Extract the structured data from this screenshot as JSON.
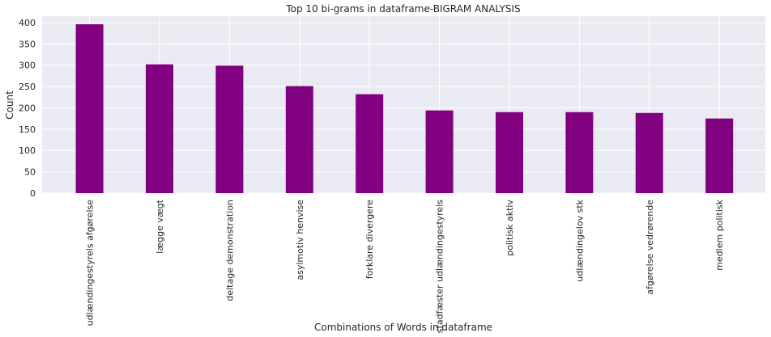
{
  "chart_data": {
    "type": "bar",
    "title": "Top 10 bi-grams in dataframe-BIGRAM ANALYSIS",
    "xlabel": "Combinations of Words in dataframe",
    "ylabel": "Count",
    "ylim": [
      0,
      415
    ],
    "yticks": [
      "0",
      "50",
      "100",
      "150",
      "200",
      "250",
      "300",
      "350",
      "400"
    ],
    "grid": true,
    "bar_color": "#800080",
    "background_color": "#eaeaf2",
    "categories": [
      "udlændingestyrels afgørelse",
      "lægge vægt",
      "deltage demonstration",
      "asylmotiv henvise",
      "forklare divergere",
      "stadfæster udlændingestyrels",
      "politisk aktiv",
      "udlændingelov stk",
      "afgørelse vedrørende",
      "medlem politisk"
    ],
    "values": [
      396,
      302,
      299,
      251,
      232,
      194,
      190,
      190,
      188,
      175
    ]
  }
}
